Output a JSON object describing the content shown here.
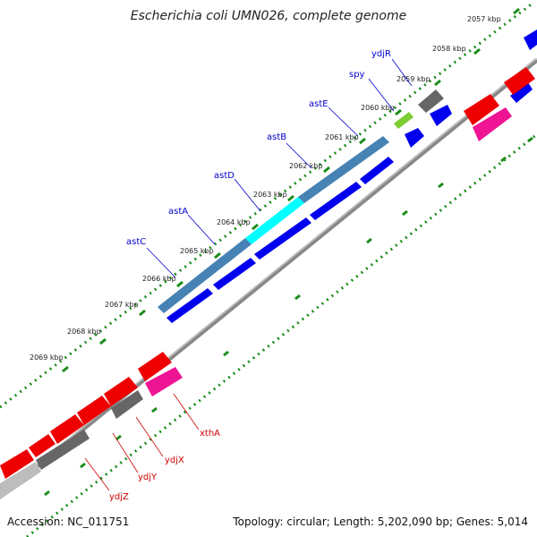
{
  "title": "Escherichia coli UMN026, complete genome",
  "footer": {
    "accession": "Accession: NC_011751",
    "topology": "Topology: circular; Length: 5,202,090 bp; Genes: 5,014"
  },
  "ticks": [
    {
      "label": "2057 kbp"
    },
    {
      "label": "2058 kbp"
    },
    {
      "label": "2059 kbp"
    },
    {
      "label": "2060 kbp"
    },
    {
      "label": "2061 kbp"
    },
    {
      "label": "2062 kbp"
    },
    {
      "label": "2063 kbp"
    },
    {
      "label": "2064 kbp"
    },
    {
      "label": "2065 kbp"
    },
    {
      "label": "2066 kbp"
    },
    {
      "label": "2067 kbp"
    },
    {
      "label": "2068 kbp"
    },
    {
      "label": "2069 kbp"
    }
  ],
  "genes_forward": [
    {
      "name": "ydjR"
    },
    {
      "name": "spy"
    },
    {
      "name": "astE"
    },
    {
      "name": "astB"
    },
    {
      "name": "astD"
    },
    {
      "name": "astA"
    },
    {
      "name": "astC"
    }
  ],
  "genes_reverse": [
    {
      "name": "xthA"
    },
    {
      "name": "ydjX"
    },
    {
      "name": "ydjY"
    },
    {
      "name": "ydjZ"
    }
  ],
  "colors": {
    "cds_blue": "#0000ee",
    "cds_red": "#ee0000",
    "gene_steelblue": "#4682b4",
    "gene_cyan": "#00ffff",
    "gene_gray": "#666666",
    "gene_pink": "#ee1493",
    "gene_green": "#7ccd32",
    "axis_gray": "#888888",
    "dot_green": "#1a8c1a",
    "label_blue": "#0000cc",
    "label_red": "#cc0000"
  }
}
